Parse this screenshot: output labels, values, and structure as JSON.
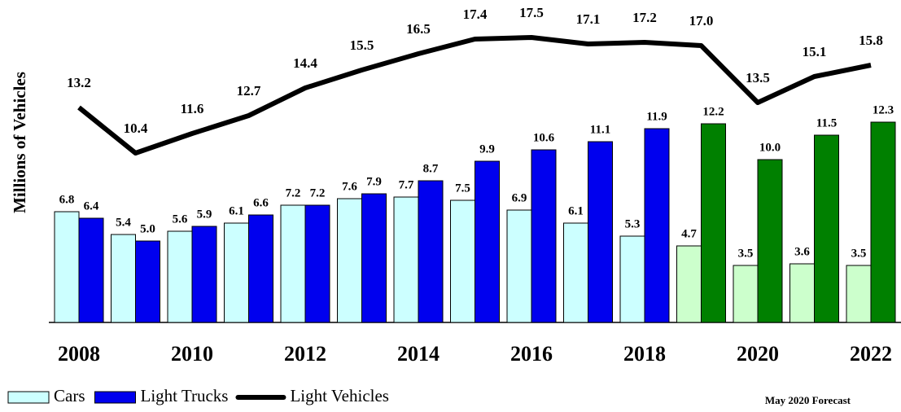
{
  "chart_data": {
    "type": "bar_line",
    "y_axis_label": "Millions of Vehicles",
    "note": "May 2020 Forecast",
    "categories": [
      "2008",
      null,
      "2010",
      null,
      "2012",
      null,
      "2014",
      null,
      "2016",
      null,
      "2018",
      null,
      "2020",
      null,
      "2022"
    ],
    "series": [
      {
        "name": "Cars",
        "kind": "bar",
        "color": "#ccffff",
        "colors": [
          "#ccffff",
          "#ccffff",
          "#ccffff",
          "#ccffff",
          "#ccffff",
          "#ccffff",
          "#ccffff",
          "#ccffff",
          "#ccffff",
          "#ccffff",
          "#ccffff",
          "#ccffcc",
          "#ccffcc",
          "#ccffcc",
          "#ccffcc"
        ],
        "values": [
          6.8,
          5.4,
          5.6,
          6.1,
          7.2,
          7.6,
          7.7,
          7.5,
          6.9,
          6.1,
          5.3,
          4.7,
          3.5,
          3.6,
          3.5
        ]
      },
      {
        "name": "Light Trucks",
        "kind": "bar",
        "color": "#0000ee",
        "colors": [
          "#0000ee",
          "#0000ee",
          "#0000ee",
          "#0000ee",
          "#0000ee",
          "#0000ee",
          "#0000ee",
          "#0000ee",
          "#0000ee",
          "#0000ee",
          "#0000ee",
          "#008000",
          "#008000",
          "#008000",
          "#008000"
        ],
        "values": [
          6.4,
          5.0,
          5.9,
          6.6,
          7.2,
          7.9,
          8.7,
          9.9,
          10.6,
          11.1,
          11.9,
          12.2,
          10.0,
          11.5,
          12.3
        ],
        "value_labels": [
          "6.4",
          "5.0",
          "5.9",
          "6.6",
          "7.2",
          "7.9",
          "8.7",
          "9.9",
          "10.6",
          "11.1",
          "11.9",
          "12.2",
          "10.0",
          "11.5",
          "12.3"
        ]
      },
      {
        "name": "Light Vehicles",
        "kind": "line",
        "color": "#000000",
        "values": [
          13.2,
          10.4,
          11.6,
          12.7,
          14.4,
          15.5,
          16.5,
          17.4,
          17.5,
          17.1,
          17.2,
          17.0,
          13.5,
          15.1,
          15.8
        ],
        "value_labels": [
          "13.2",
          "10.4",
          "11.6",
          "12.7",
          "14.4",
          "15.5",
          "16.5",
          "17.4",
          "17.5",
          "17.1",
          "17.2",
          "17.0",
          "13.5",
          "15.1",
          "15.8"
        ]
      }
    ],
    "legend": "bottom-left"
  }
}
